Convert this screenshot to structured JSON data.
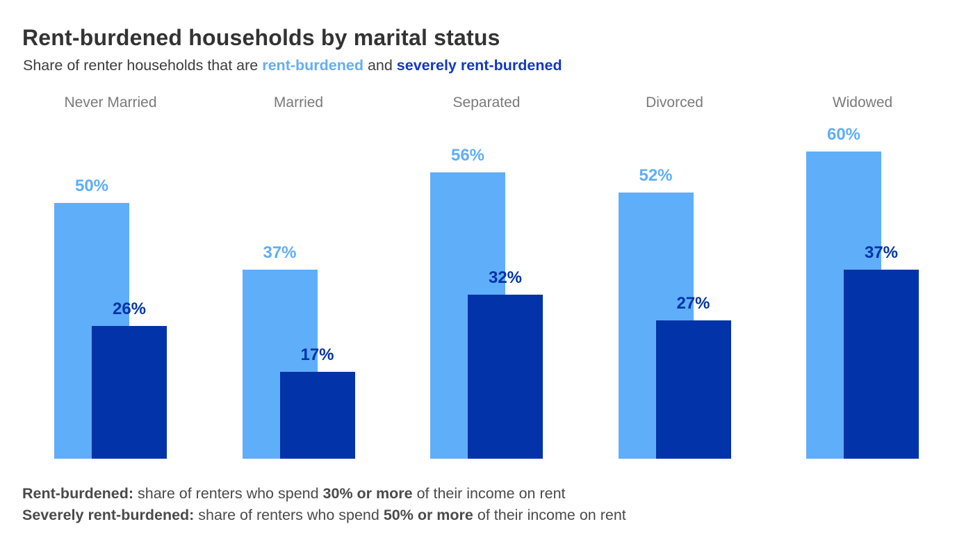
{
  "header": {
    "title": "Rent-burdened households by marital status",
    "subtitle_prefix": "Share of renter households that are ",
    "light_term": "rent-burdened",
    "conjunction": " and ",
    "dark_term": "severely rent-burdened"
  },
  "colors": {
    "light_blue": "#5FAEFA",
    "dark_blue": "#0233A8",
    "subtitle_light_blue": "#64AEF7",
    "subtitle_dark_blue": "#1138C8",
    "title_text": "#333333",
    "category_text": "#7A7A7A",
    "note_text": "#4A4A4A"
  },
  "chart_data": {
    "type": "bar",
    "categories": [
      "Never Married",
      "Married",
      "Separated",
      "Divorced",
      "Widowed"
    ],
    "series": [
      {
        "name": "Rent-burdened",
        "color_key": "light_blue",
        "values": [
          50,
          37,
          56,
          52,
          60
        ],
        "labels": [
          "50%",
          "37%",
          "56%",
          "52%",
          "60%"
        ]
      },
      {
        "name": "Severely rent-burdened",
        "color_key": "dark_blue",
        "values": [
          26,
          17,
          32,
          27,
          37
        ],
        "labels": [
          "26%",
          "17%",
          "32%",
          "27%",
          "37%"
        ]
      }
    ],
    "unit": "%",
    "ylim": [
      0,
      60
    ],
    "value_labels_shown": true,
    "grid": false,
    "axes_shown": false,
    "legend_position": "in-subtitle",
    "bar_style": "overlapped-pairs"
  },
  "notes": [
    {
      "term": "Rent-burdened:",
      "mid": " share of renters who spend ",
      "threshold": "30% or more",
      "tail": " of their income on rent"
    },
    {
      "term": "Severely rent-burdened:",
      "mid": " share of renters who spend ",
      "threshold": "50% or more",
      "tail": " of their income on rent"
    }
  ]
}
